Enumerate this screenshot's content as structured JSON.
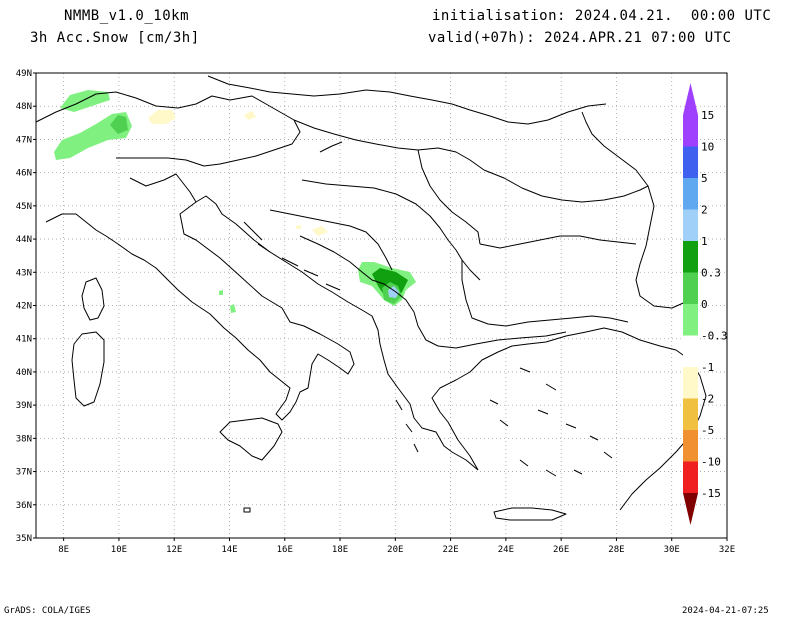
{
  "header": {
    "model": "NMMB_v1.0_10km",
    "field": "3h Acc.Snow [cm/3h]",
    "init": "initialisation: 2024.04.21.  00:00 UTC",
    "valid": "valid(+07h): 2024.APR.21 07:00 UTC"
  },
  "footer": {
    "credit": "GrADS: COLA/IGES",
    "timestamp": "2024-04-21-07:25"
  },
  "axes": {
    "lat_labels": [
      "49N",
      "48N",
      "47N",
      "46N",
      "45N",
      "44N",
      "43N",
      "42N",
      "41N",
      "40N",
      "39N",
      "38N",
      "37N",
      "36N",
      "35N"
    ],
    "lat_values": [
      49,
      48,
      47,
      46,
      45,
      44,
      43,
      42,
      41,
      40,
      39,
      38,
      37,
      36,
      35
    ],
    "lon_labels": [
      "8E",
      "10E",
      "12E",
      "14E",
      "16E",
      "18E",
      "20E",
      "22E",
      "24E",
      "26E",
      "28E",
      "30E",
      "32E"
    ],
    "lon_values": [
      8,
      10,
      12,
      14,
      16,
      18,
      20,
      22,
      24,
      26,
      28,
      30,
      32
    ],
    "lon_range": [
      7,
      32
    ],
    "lat_range": [
      35,
      49
    ]
  },
  "colorbar": {
    "levels": [
      {
        "label": "15",
        "color": "#a040ff"
      },
      {
        "label": "10",
        "color": "#4060f0"
      },
      {
        "label": "5",
        "color": "#60a8f0"
      },
      {
        "label": "2",
        "color": "#a0d0f8"
      },
      {
        "label": "1",
        "color": "#10a010"
      },
      {
        "label": "0.3",
        "color": "#50d050"
      },
      {
        "label": "0",
        "color": "#80f080"
      },
      {
        "label": "-0.3",
        "color": "#ffffff"
      },
      {
        "label": "-1",
        "color": "#fff8c8"
      },
      {
        "label": "-2",
        "color": "#f0c040"
      },
      {
        "label": "-5",
        "color": "#f09030"
      },
      {
        "label": "-10",
        "color": "#f02020"
      },
      {
        "label": "-15",
        "color": "#c00000"
      }
    ],
    "tip_low_color": "#800000",
    "tip_high_color": "#a040ff"
  }
}
